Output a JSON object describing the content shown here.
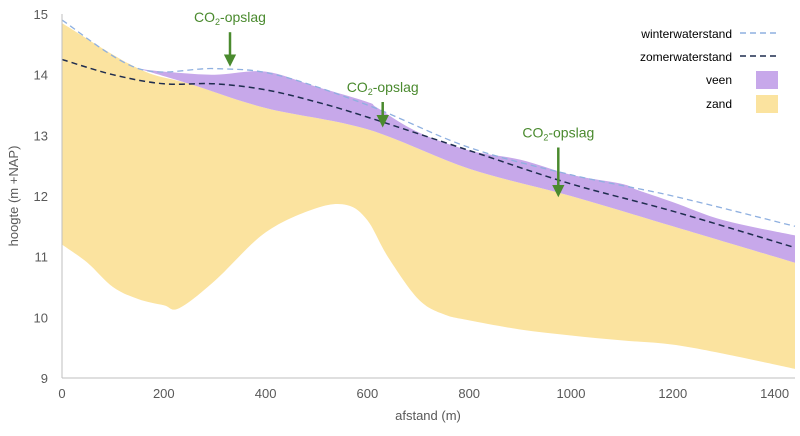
{
  "chart_data": {
    "type": "area",
    "title": "",
    "xlabel": "afstand (m)",
    "ylabel": "hoogte (m +NAP)",
    "xlim": [
      0,
      1440
    ],
    "ylim": [
      9,
      15
    ],
    "x_ticks": [
      0,
      200,
      400,
      600,
      800,
      1000,
      1200,
      1400
    ],
    "y_ticks": [
      9,
      10,
      11,
      12,
      13,
      14,
      15
    ],
    "colors": {
      "winter": "#8fb0e0",
      "zomer": "#1f2d4f",
      "veen": "#c7a8ea",
      "zand": "#fbe39f",
      "annotation": "#4a8a2e",
      "axis": "#bfbfbf"
    },
    "legend": [
      {
        "key": "winter",
        "label": "winterwaterstand",
        "symbol": "line-dashed"
      },
      {
        "key": "zomer",
        "label": "zomerwaterstand",
        "symbol": "line-dashed"
      },
      {
        "key": "veen",
        "label": "veen",
        "symbol": "area"
      },
      {
        "key": "zand",
        "label": "zand",
        "symbol": "area"
      }
    ],
    "series": [
      {
        "name": "winterwaterstand",
        "key": "winter",
        "x": [
          0,
          150,
          300,
          420,
          600,
          800,
          1000,
          1200,
          1440
        ],
        "y": [
          14.9,
          14.1,
          14.1,
          14.0,
          13.5,
          12.8,
          12.35,
          12.0,
          11.5
        ]
      },
      {
        "name": "zomerwaterstand",
        "key": "zomer",
        "x": [
          0,
          100,
          200,
          300,
          400,
          500,
          600,
          800,
          1000,
          1200,
          1440
        ],
        "y": [
          14.25,
          14.0,
          13.85,
          13.85,
          13.75,
          13.55,
          13.3,
          12.75,
          12.2,
          11.75,
          11.15
        ]
      },
      {
        "name": "veen",
        "key": "veen",
        "top_x": [
          150,
          200,
          300,
          400,
          500,
          600,
          620,
          700,
          800,
          900,
          1000,
          1100,
          1130,
          1200,
          1300,
          1440
        ],
        "top_y": [
          14.1,
          14.05,
          14.0,
          14.05,
          13.8,
          13.55,
          13.45,
          13.05,
          12.75,
          12.6,
          12.35,
          12.2,
          12.1,
          11.9,
          11.6,
          11.35
        ],
        "bottom_x": [
          1440,
          1200,
          1000,
          800,
          600,
          400,
          250,
          150
        ],
        "bottom_y": [
          10.9,
          11.5,
          12.0,
          12.45,
          13.1,
          13.45,
          13.85,
          14.1
        ]
      },
      {
        "name": "zand",
        "key": "zand",
        "top_x": [
          0,
          150,
          250,
          400,
          600,
          800,
          1000,
          1200,
          1440
        ],
        "top_y": [
          14.85,
          14.1,
          13.85,
          13.45,
          13.1,
          12.45,
          12.0,
          11.5,
          10.9
        ],
        "bottom_x": [
          1440,
          1300,
          1200,
          1100,
          1000,
          900,
          800,
          750,
          700,
          640,
          600,
          560,
          500,
          400,
          300,
          230,
          200,
          150,
          100,
          50,
          0
        ],
        "bottom_y": [
          9.15,
          9.4,
          9.55,
          9.62,
          9.7,
          9.8,
          9.95,
          10.05,
          10.3,
          11.0,
          11.6,
          11.85,
          11.8,
          11.4,
          10.6,
          10.15,
          10.2,
          10.3,
          10.5,
          10.9,
          11.2
        ]
      }
    ],
    "annotations": [
      {
        "prefix": "CO",
        "sub": "2",
        "suffix": "-opslag",
        "arrow_x": 330,
        "arrow_y_start": 14.7,
        "arrow_y_end": 14.2
      },
      {
        "prefix": "CO",
        "sub": "2",
        "suffix": "-opslag",
        "arrow_x": 630,
        "arrow_y_start": 13.55,
        "arrow_y_end": 13.2
      },
      {
        "prefix": "CO",
        "sub": "2",
        "suffix": "-opslag",
        "arrow_x": 975,
        "arrow_y_start": 12.8,
        "arrow_y_end": 12.05
      }
    ]
  }
}
